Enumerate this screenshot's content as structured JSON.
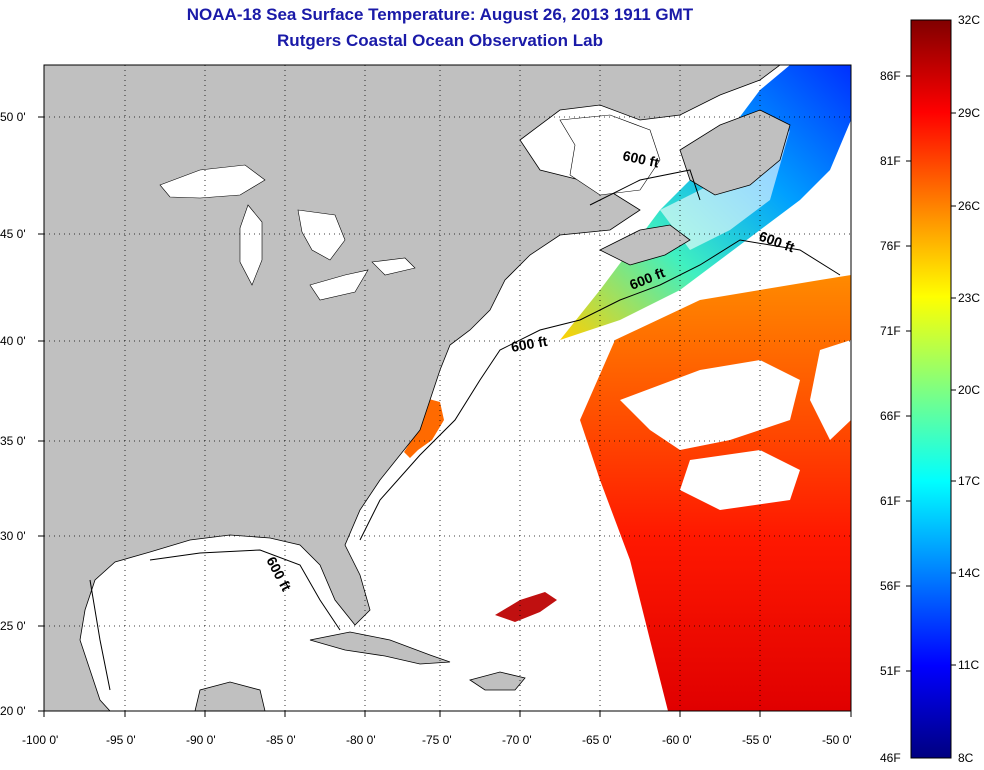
{
  "header": {
    "title": "NOAA-18 Sea Surface Temperature:  August 26, 2013 1911 GMT",
    "subtitle": "Rutgers Coastal Ocean Observation Lab"
  },
  "map": {
    "lon_range": [
      -100,
      -50
    ],
    "lat_range": [
      20,
      52
    ],
    "lon_ticks": [
      "-100 0'",
      "-95 0'",
      "-90 0'",
      "-85 0'",
      "-80 0'",
      "-75 0'",
      "-70 0'",
      "-65 0'",
      "-60 0'",
      "-55 0'",
      "-50 0'"
    ],
    "lat_ticks": [
      "50 0'",
      "45 0'",
      "40 0'",
      "35 0'",
      "30 0'",
      "25 0'",
      "20 0'"
    ],
    "land_color": "#c0c0c0",
    "nodata_color": "#ffffff",
    "grid": "dotted",
    "contour_label": "600 ft"
  },
  "colorbar": {
    "celsius_labels": [
      "32C",
      "29C",
      "26C",
      "23C",
      "20C",
      "17C",
      "14C",
      "11C",
      "8C"
    ],
    "fahrenheit_labels": [
      "86F",
      "81F",
      "76F",
      "71F",
      "66F",
      "61F",
      "56F",
      "51F",
      "46F"
    ],
    "gradient": [
      "#800000",
      "#ff0000",
      "#ff8000",
      "#ffff00",
      "#80ff80",
      "#00ffff",
      "#0080ff",
      "#0000ff",
      "#000080"
    ]
  }
}
